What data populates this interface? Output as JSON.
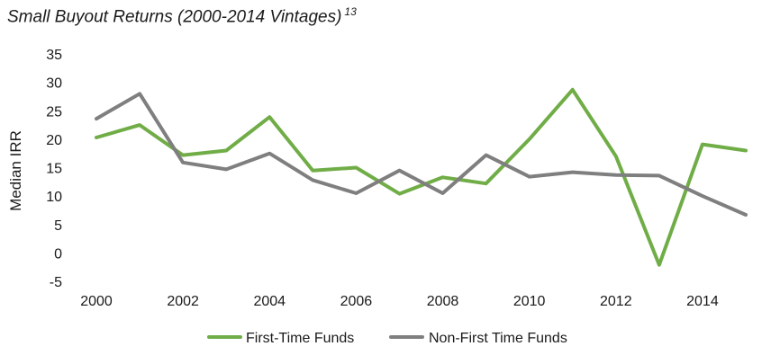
{
  "chart_data": {
    "type": "line",
    "title": "Small Buyout Returns (2000-2014 Vintages)",
    "title_superscript": "13",
    "xlabel": "",
    "ylabel": "Median IRR",
    "x": [
      2000,
      2001,
      2002,
      2003,
      2004,
      2005,
      2006,
      2007,
      2008,
      2009,
      2010,
      2011,
      2012,
      2013,
      2014,
      2015
    ],
    "x_ticks": [
      "2000",
      "2002",
      "2004",
      "2006",
      "2008",
      "2010",
      "2012",
      "2014"
    ],
    "y_ticks": [
      "35",
      "30",
      "25",
      "20",
      "15",
      "10",
      "5",
      "0",
      "-5"
    ],
    "ylim": [
      -5,
      35
    ],
    "grid": false,
    "legend_position": "bottom",
    "series": [
      {
        "name": "First-Time Funds",
        "color": "#70ad47",
        "values": [
          20.3,
          22.5,
          17.2,
          18.0,
          23.9,
          14.5,
          15.0,
          10.4,
          13.3,
          12.2,
          20.0,
          28.7,
          17.0,
          -2.1,
          19.1,
          18.0
        ]
      },
      {
        "name": "Non-First Time Funds",
        "color": "#7f7f7f",
        "values": [
          23.6,
          28.0,
          15.9,
          14.7,
          17.5,
          12.8,
          10.5,
          14.5,
          10.5,
          17.2,
          13.4,
          14.2,
          13.7,
          13.6,
          10.0,
          6.7
        ]
      }
    ]
  }
}
